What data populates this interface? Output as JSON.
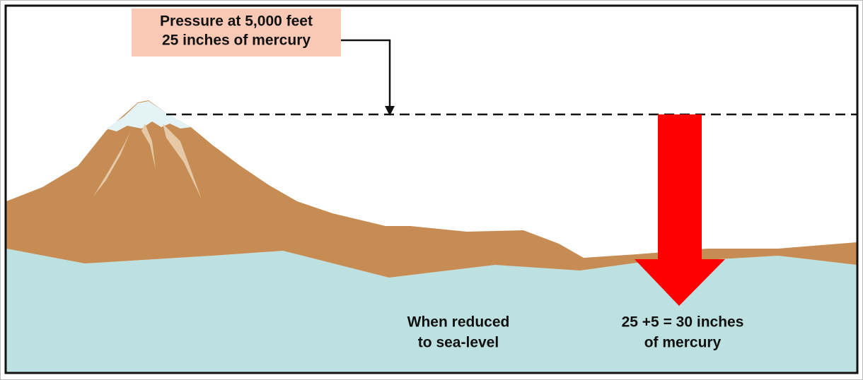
{
  "label_box": {
    "lines": [
      "Pressure at 5,000 feet",
      "25 inches of mercury"
    ]
  },
  "reduced_label": {
    "lines": [
      "When reduced",
      "to sea-level"
    ]
  },
  "result_label": {
    "lines": [
      "25 +5 = 30 inches",
      "of mercury"
    ]
  }
}
